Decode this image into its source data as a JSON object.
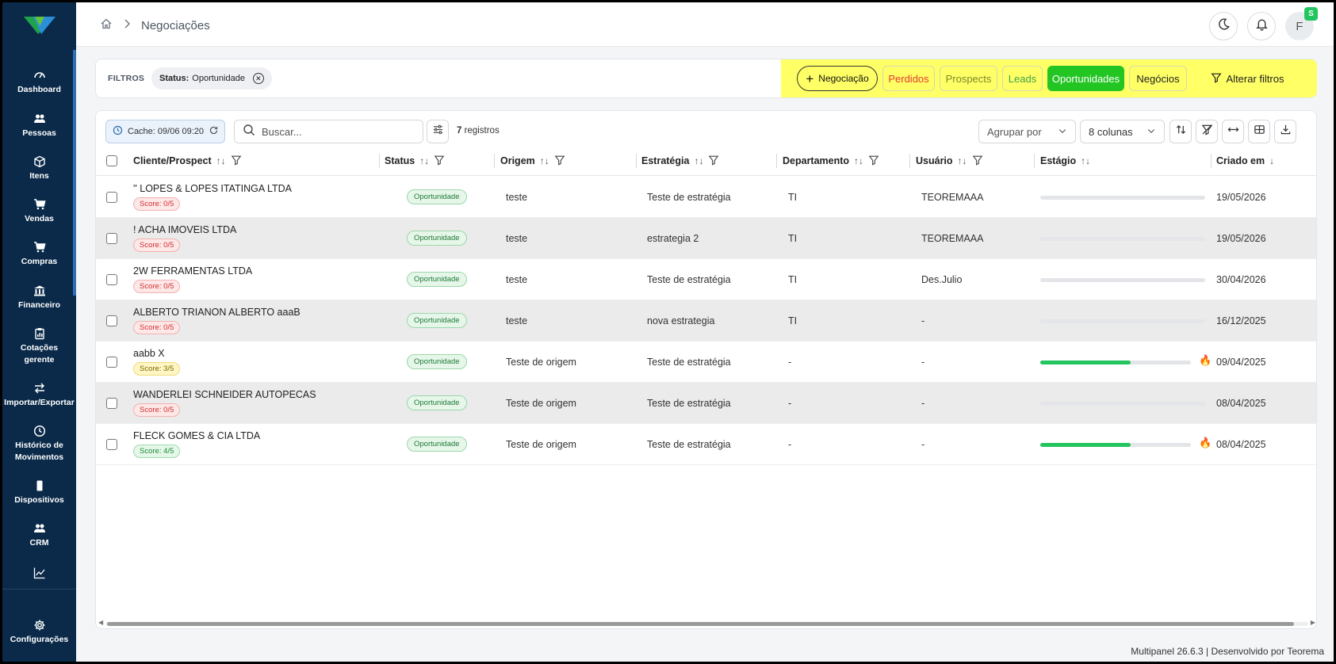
{
  "app": {
    "brand_icon": "multipanel-logo-icon"
  },
  "sidebar": {
    "items": [
      {
        "label": "Dashboard",
        "icon": "dashboard-icon"
      },
      {
        "label": "Pessoas",
        "icon": "people-icon"
      },
      {
        "label": "Itens",
        "icon": "box-icon"
      },
      {
        "label": "Vendas",
        "icon": "cart-icon"
      },
      {
        "label": "Compras",
        "icon": "cart-icon"
      },
      {
        "label": "Financeiro",
        "icon": "bank-icon"
      },
      {
        "label": "Cotações gerente",
        "icon": "clipboard-icon"
      },
      {
        "label": "Importar/Exportar",
        "icon": "swap-icon"
      },
      {
        "label": "Histórico de Movimentos",
        "icon": "clock-icon"
      },
      {
        "label": "Dispositivos",
        "icon": "phone-icon"
      },
      {
        "label": "CRM",
        "icon": "people-icon"
      },
      {
        "label": "",
        "icon": "chart-line-icon"
      }
    ],
    "settings_label": "Configurações"
  },
  "topbar": {
    "breadcrumb": "Negociações",
    "avatar_initial": "F",
    "avatar_badge": "S"
  },
  "filters": {
    "label": "FILTROS",
    "chip_key": "Status:",
    "chip_value": "Oportunidade",
    "quick": {
      "new_deal": "Negociação",
      "lost": "Perdidos",
      "prospects": "Prospects",
      "leads": "Leads",
      "opportunities": "Oportunidades",
      "deals": "Negócios",
      "change_filters": "Alterar filtros"
    },
    "colors": {
      "highlight": "#ffff66",
      "active": "#22c522"
    }
  },
  "toolbar": {
    "cache_label": "Cache: 09/06 09:20",
    "search_placeholder": "Buscar...",
    "records_count": "7",
    "records_label": "registros",
    "group_by": "Agrupar por",
    "columns": "8 colunas"
  },
  "table": {
    "headers": {
      "client": "Cliente/Prospect",
      "status": "Status",
      "origin": "Origem",
      "strategy": "Estratégia",
      "department": "Departamento",
      "user": "Usuário",
      "stage": "Estágio",
      "created": "Criado em"
    },
    "rows": [
      {
        "client": "'' LOPES & LOPES ITATINGA LTDA",
        "score": "Score: 0/5",
        "score_level": "red",
        "status": "Oportunidade",
        "origin": "teste",
        "strategy": "Teste de estratégia",
        "department": "TI",
        "user": "TEOREMAAA",
        "stage_progress": 0,
        "hot": false,
        "created": "19/05/2026"
      },
      {
        "client": "! ACHA IMOVEIS LTDA",
        "score": "Score: 0/5",
        "score_level": "red",
        "status": "Oportunidade",
        "origin": "teste",
        "strategy": "estrategia 2",
        "department": "TI",
        "user": "TEOREMAAA",
        "stage_progress": 0,
        "hot": false,
        "created": "19/05/2026"
      },
      {
        "client": "2W FERRAMENTAS LTDA",
        "score": "Score: 0/5",
        "score_level": "red",
        "status": "Oportunidade",
        "origin": "teste",
        "strategy": "Teste de estratégia",
        "department": "TI",
        "user": "Des.Julio",
        "stage_progress": 0,
        "hot": false,
        "created": "30/04/2026"
      },
      {
        "client": "ALBERTO TRIANON ALBERTO aaaB",
        "score": "Score: 0/5",
        "score_level": "red",
        "status": "Oportunidade",
        "origin": "teste",
        "strategy": "nova estrategia",
        "department": "TI",
        "user": "-",
        "stage_progress": 0,
        "hot": false,
        "created": "16/12/2025"
      },
      {
        "client": "aabb X",
        "score": "Score: 3/5",
        "score_level": "yellow",
        "status": "Oportunidade",
        "origin": "Teste de origem",
        "strategy": "Teste de estratégia",
        "department": "-",
        "user": "-",
        "stage_progress": 0.6,
        "hot": true,
        "created": "09/04/2025"
      },
      {
        "client": "WANDERLEI SCHNEIDER AUTOPECAS",
        "score": "Score: 0/5",
        "score_level": "red",
        "status": "Oportunidade",
        "origin": "Teste de origem",
        "strategy": "Teste de estratégia",
        "department": "-",
        "user": "-",
        "stage_progress": 0,
        "hot": false,
        "created": "08/04/2025"
      },
      {
        "client": "FLECK GOMES & CIA LTDA",
        "score": "Score: 4/5",
        "score_level": "green",
        "status": "Oportunidade",
        "origin": "Teste de origem",
        "strategy": "Teste de estratégia",
        "department": "-",
        "user": "-",
        "stage_progress": 0.6,
        "hot": true,
        "created": "08/04/2025"
      }
    ]
  },
  "footer": {
    "text": "Multipanel 26.6.3 | Desenvolvido por Teorema"
  }
}
